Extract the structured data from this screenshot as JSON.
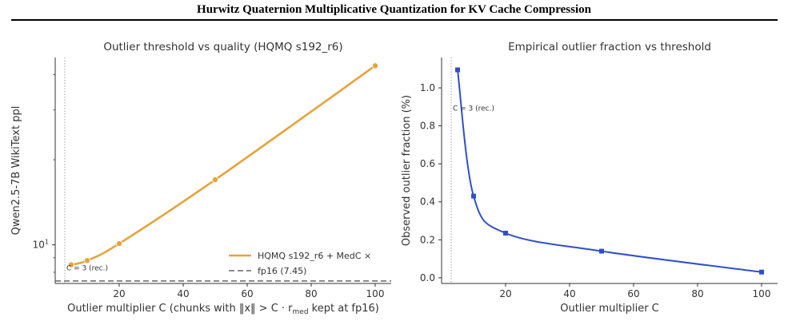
{
  "header": {
    "title": "Hurwitz Quaternion Multiplicative Quantization for KV Cache Compression"
  },
  "colors": {
    "series_left": "#e6a33c",
    "series_right": "#2f4fc9",
    "reference": "#666666"
  },
  "chart_data": [
    {
      "type": "line",
      "title": "Outlier threshold vs quality (HQMQ s192_r6)",
      "xlabel": "Outlier multiplier C (chunks with ‖x‖ > C · r",
      "xlabel_sub": "med",
      "xlabel_tail": " kept at fp16)",
      "ylabel": "Qwen2.5-7B WikiText ppl",
      "yscale": "log",
      "xlim": [
        0,
        105
      ],
      "ylim": [
        7.3,
        46
      ],
      "xticks": [
        20,
        40,
        60,
        80,
        100
      ],
      "yticks": [
        {
          "value": 10,
          "label": "10",
          "exp": "1"
        }
      ],
      "series": [
        {
          "name": "HQMQ s192_r6 + MedC ×",
          "x": [
            5,
            10,
            20,
            50,
            100
          ],
          "y": [
            8.5,
            8.8,
            10.1,
            17.0,
            43.0
          ]
        }
      ],
      "reference_line": {
        "y": 7.45,
        "label": "fp16 (7.45)"
      },
      "vline": {
        "x": 3,
        "label": "C = 3 (rec.)"
      },
      "legend": "bottom-right"
    },
    {
      "type": "line",
      "title": "Empirical outlier fraction vs threshold",
      "xlabel": "Outlier multiplier C",
      "ylabel": "Observed outlier fraction (%)",
      "xlim": [
        0,
        105
      ],
      "ylim": [
        -0.03,
        1.16
      ],
      "xticks": [
        20,
        40,
        60,
        80,
        100
      ],
      "yticks": [
        0.0,
        0.2,
        0.4,
        0.6,
        0.8,
        1.0
      ],
      "series": [
        {
          "x": [
            5,
            10,
            20,
            50,
            100
          ],
          "y": [
            1.095,
            0.43,
            0.235,
            0.14,
            0.03
          ]
        }
      ],
      "vline": {
        "x": 3,
        "label": "C = 3 (rec.)"
      }
    }
  ]
}
